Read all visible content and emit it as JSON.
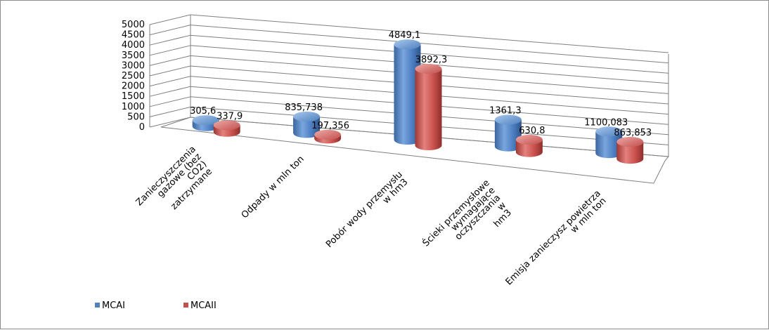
{
  "chart_data": {
    "type": "bar",
    "style": "3d-cylinder",
    "categories": [
      "Zanieczyszczenia gazowe (bez CO2) zatrzymane",
      "Odpady  w mln ton",
      "Pobór wody przemysłu w hm3",
      "Ścieki przemysłowe wymagające oczyszczania w hm3",
      "Emisja zanieczysz powietrza w mln ton"
    ],
    "category_label_lines": [
      [
        "Zanieczyszczenia",
        "gazowe (bez",
        "CO2)",
        "zatrzymane"
      ],
      [
        "Odpady  w mln ton"
      ],
      [
        "Pobór wody przemysłu",
        "w hm3"
      ],
      [
        "Ścieki przemysłowe",
        "wymagające",
        "oczyszczania",
        "w",
        "hm3"
      ],
      [
        "Emisja zanieczysz powietrza",
        "w mln ton"
      ]
    ],
    "series": [
      {
        "name": "MCAI",
        "color": "#4f81bd",
        "values": [
          305.6,
          835.738,
          4849.1,
          1361.3,
          1100.083
        ],
        "labels": [
          "305,6",
          "835,738",
          "4849,1",
          "1361,3",
          "1100,083"
        ]
      },
      {
        "name": "MCAII",
        "color": "#c0504d",
        "values": [
          337.9,
          197.356,
          3892.3,
          630.8,
          863.853
        ],
        "labels": [
          "337,9",
          "197,356",
          "3892,3",
          "630,8",
          "863,853"
        ]
      }
    ],
    "y_ticks": [
      "0",
      "500",
      "1000",
      "1500",
      "2000",
      "2500",
      "3000",
      "3500",
      "4000",
      "4500",
      "5000"
    ],
    "ylim": [
      0,
      5000
    ],
    "grid": true,
    "legend_position": "bottom-left"
  }
}
